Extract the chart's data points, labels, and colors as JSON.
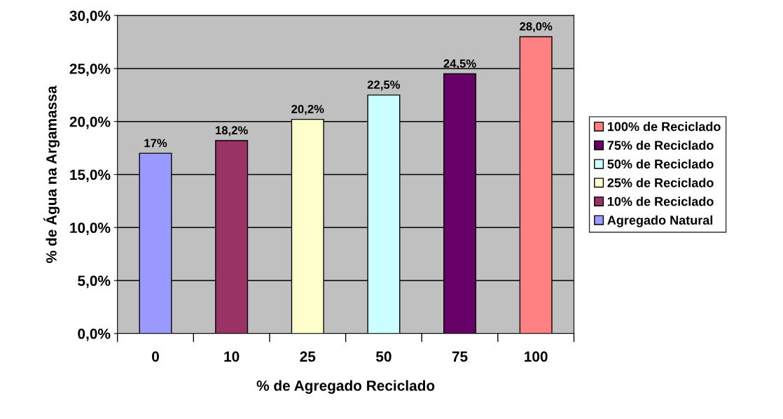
{
  "chart_data": {
    "type": "bar",
    "xlabel": "% de Agregado Reciclado",
    "ylabel": "% de Água na Argamassa",
    "categories": [
      "0",
      "10",
      "25",
      "50",
      "75",
      "100"
    ],
    "series": [
      {
        "name": "100% de Reciclado",
        "color": "#ff8080",
        "values": [
          null,
          null,
          null,
          null,
          null,
          28.0
        ],
        "value_labels": [
          null,
          null,
          null,
          null,
          null,
          "28,0%"
        ]
      },
      {
        "name": "75% de Reciclado",
        "color": "#660066",
        "values": [
          null,
          null,
          null,
          null,
          24.5,
          null
        ],
        "value_labels": [
          null,
          null,
          null,
          null,
          "24,5%",
          null
        ]
      },
      {
        "name": "50% de Reciclado",
        "color": "#ccffff",
        "values": [
          null,
          null,
          null,
          22.5,
          null,
          null
        ],
        "value_labels": [
          null,
          null,
          null,
          "22,5%",
          null,
          null
        ]
      },
      {
        "name": "25% de Reciclado",
        "color": "#ffffcc",
        "values": [
          null,
          null,
          20.2,
          null,
          null,
          null
        ],
        "value_labels": [
          null,
          null,
          "20,2%",
          null,
          null,
          null
        ]
      },
      {
        "name": "10% de Reciclado",
        "color": "#993366",
        "values": [
          null,
          18.2,
          null,
          null,
          null,
          null
        ],
        "value_labels": [
          null,
          "18,2%",
          null,
          null,
          null,
          null
        ]
      },
      {
        "name": "Agregado Natural",
        "color": "#9999ff",
        "values": [
          17,
          null,
          null,
          null,
          null,
          null
        ],
        "value_labels": [
          "17%",
          null,
          null,
          null,
          null,
          null
        ]
      }
    ],
    "ylim": [
      0,
      30
    ],
    "yticks": [
      {
        "value": 0,
        "label": "0,0%"
      },
      {
        "value": 5,
        "label": "5,0%"
      },
      {
        "value": 10,
        "label": "10,0%"
      },
      {
        "value": 15,
        "label": "15,0%"
      },
      {
        "value": 20,
        "label": "20,0%"
      },
      {
        "value": 25,
        "label": "25,0%"
      },
      {
        "value": 30,
        "label": "30,0%"
      }
    ],
    "grid": "y",
    "legend": "right"
  }
}
